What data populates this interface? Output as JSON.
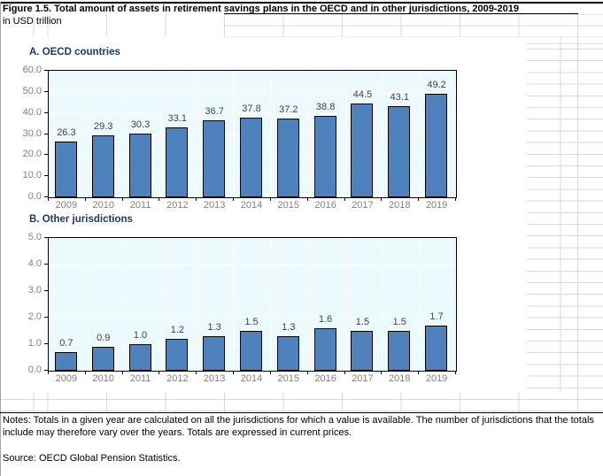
{
  "figure": {
    "title": "Figure 1.5. Total amount of assets in retirement savings plans in the OECD and in other jurisdictions, 2009-2019",
    "subtitle": "in USD trillion",
    "notes": "Notes: Totals in a given year are calculated on all the jurisdictions for which a value is available. The number of jurisdictions that the totals include may therefore vary over the years. Totals are expressed in current prices.",
    "source": "Source: OECD Global Pension Statistics."
  },
  "chart_data": [
    {
      "type": "bar",
      "title": "A. OECD countries",
      "categories": [
        "2009",
        "2010",
        "2011",
        "2012",
        "2013",
        "2014",
        "2015",
        "2016",
        "2017",
        "2018",
        "2019"
      ],
      "values": [
        26.3,
        29.3,
        30.3,
        33.1,
        36.7,
        37.8,
        37.2,
        38.8,
        44.5,
        43.1,
        49.2
      ],
      "xlabel": "",
      "ylabel": "",
      "ylim": [
        0,
        60
      ],
      "ytick_step": 10,
      "yticks": [
        "0.0",
        "10.0",
        "20.0",
        "30.0",
        "40.0",
        "50.0",
        "60.0"
      ],
      "grid": true,
      "legend": "none",
      "value_labels": true
    },
    {
      "type": "bar",
      "title": "B. Other jurisdictions",
      "categories": [
        "2009",
        "2010",
        "2011",
        "2012",
        "2013",
        "2014",
        "2015",
        "2016",
        "2017",
        "2018",
        "2019"
      ],
      "values": [
        0.7,
        0.9,
        1.0,
        1.2,
        1.3,
        1.5,
        1.3,
        1.6,
        1.5,
        1.5,
        1.7
      ],
      "xlabel": "",
      "ylabel": "",
      "ylim": [
        0,
        5
      ],
      "ytick_step": 1,
      "yticks": [
        "0.0",
        "1.0",
        "2.0",
        "3.0",
        "4.0",
        "5.0"
      ],
      "grid": true,
      "legend": "none",
      "value_labels": true
    }
  ],
  "colors": {
    "bar_fill": "#4f81bd",
    "bar_border": "#000000",
    "plot_bg": "#edfafd",
    "plot_grid": "#ffffff",
    "panel_title": "#1f3864",
    "axis_tick_label": "#808080",
    "value_label": "#404040",
    "text": "#000000"
  }
}
